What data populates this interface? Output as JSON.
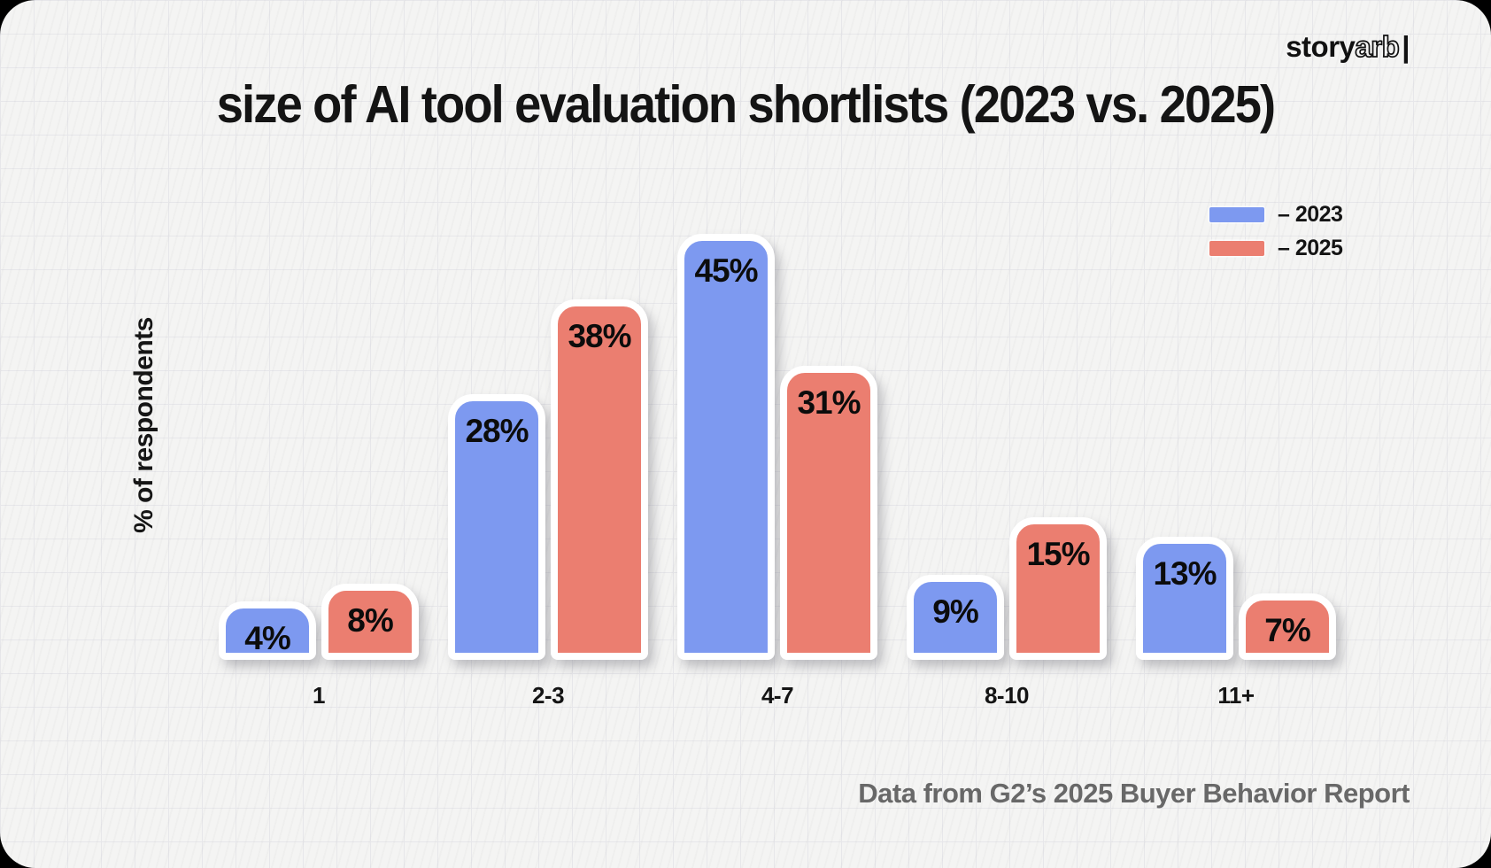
{
  "page": {
    "outer_background": "#000000",
    "card_background": "#f4f4f3",
    "grid_line_color": "#e7e7ea"
  },
  "logo": {
    "solid": "story",
    "outline": "arb",
    "cursor": "|"
  },
  "title": "size of AI tool evaluation shortlists (2023 vs. 2025)",
  "legend": {
    "items": [
      {
        "label": "– 2023",
        "color": "#7D99F0"
      },
      {
        "label": "– 2025",
        "color": "#EB7E70"
      }
    ]
  },
  "footer": "Data from G2’s 2025 Buyer Behavior Report",
  "chart_data": {
    "type": "bar",
    "title": "size of AI tool evaluation shortlists (2023 vs. 2025)",
    "xlabel": "",
    "ylabel": "% of respondents",
    "categories": [
      "1",
      "2-3",
      "4-7",
      "8-10",
      "11+"
    ],
    "series": [
      {
        "name": "2023",
        "color": "#7D99F0",
        "values": [
          4,
          28,
          45,
          9,
          13
        ]
      },
      {
        "name": "2025",
        "color": "#EB7E70",
        "values": [
          8,
          38,
          31,
          15,
          7
        ]
      }
    ],
    "value_suffix": "%",
    "value_labels": "inside-top",
    "ylim": [
      0,
      50
    ],
    "grid": "background paper grid only, no axis lines",
    "legend_position": "top-right"
  }
}
